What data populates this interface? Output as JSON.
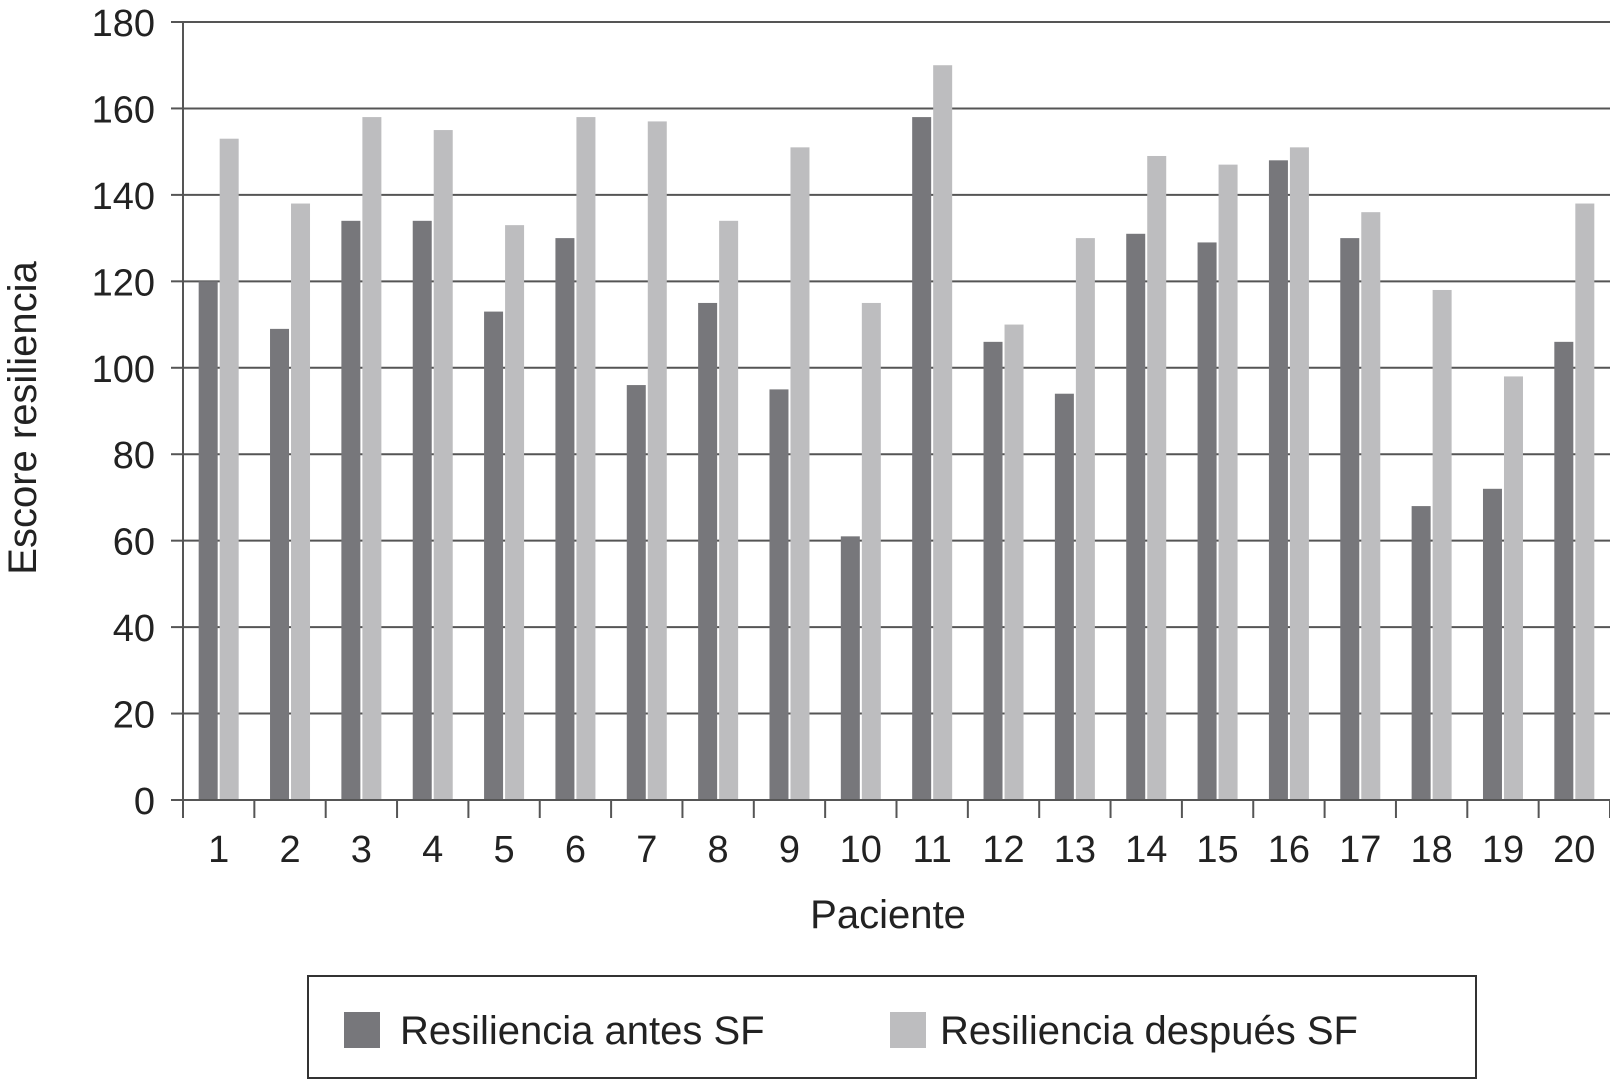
{
  "chart_data": {
    "type": "bar",
    "xlabel": "Paciente",
    "ylabel": "Escore resiliencia",
    "ylim": [
      0,
      180
    ],
    "yticks": [
      0,
      20,
      40,
      60,
      80,
      100,
      120,
      140,
      160,
      180
    ],
    "grid": "horizontal",
    "legend_position": "bottom",
    "categories": [
      "1",
      "2",
      "3",
      "4",
      "5",
      "6",
      "7",
      "8",
      "9",
      "10",
      "11",
      "12",
      "13",
      "14",
      "15",
      "16",
      "17",
      "18",
      "19",
      "20"
    ],
    "series": [
      {
        "name": "Resiliencia antes SF",
        "color": "#77777b",
        "values": [
          120,
          109,
          134,
          134,
          113,
          130,
          96,
          115,
          95,
          61,
          158,
          106,
          94,
          131,
          129,
          148,
          130,
          68,
          72,
          106
        ]
      },
      {
        "name": "Resiliencia después SF",
        "color": "#bdbdbf",
        "values": [
          153,
          138,
          158,
          155,
          133,
          158,
          157,
          134,
          151,
          115,
          170,
          110,
          130,
          149,
          147,
          151,
          136,
          118,
          98,
          138
        ]
      }
    ]
  }
}
